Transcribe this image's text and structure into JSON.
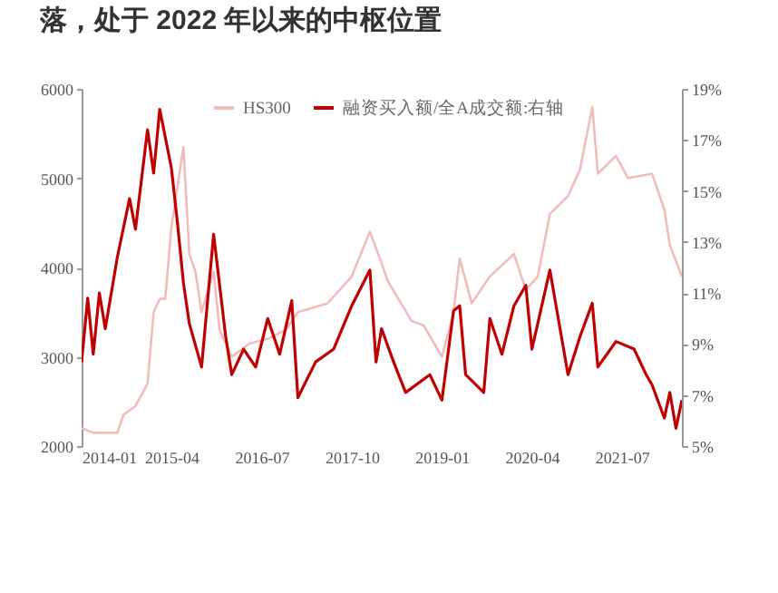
{
  "chart_data": {
    "type": "line",
    "title": "落，处于 2022 年以来的中枢位置",
    "series": [
      {
        "name": "HS300",
        "color": "#f0bcbc",
        "axis": "y",
        "x": [
          "2014-01",
          "2014-03",
          "2014-07",
          "2014-08",
          "2014-10",
          "2014-12",
          "2015-01",
          "2015-02",
          "2015-03",
          "2015-04",
          "2015-06",
          "2015-07",
          "2015-08",
          "2015-09",
          "2015-11",
          "2015-12",
          "2016-02",
          "2016-05",
          "2016-08",
          "2016-11",
          "2017-01",
          "2017-06",
          "2017-10",
          "2018-01",
          "2018-03",
          "2018-04",
          "2018-08",
          "2018-10",
          "2019-01",
          "2019-03",
          "2019-04",
          "2019-06",
          "2019-09",
          "2020-01",
          "2020-03",
          "2020-05",
          "2020-07",
          "2020-10",
          "2020-12",
          "2021-02",
          "2021-03",
          "2021-06",
          "2021-08",
          "2021-12",
          "2022-02",
          "2022-03",
          "2022-05"
        ],
        "values": [
          2200,
          2150,
          2150,
          2350,
          2450,
          2700,
          3500,
          3650,
          3650,
          4450,
          5350,
          4150,
          3950,
          3500,
          3950,
          3300,
          3000,
          3150,
          3200,
          3300,
          3500,
          3600,
          3900,
          4400,
          4050,
          3850,
          3400,
          3350,
          3000,
          3500,
          4100,
          3600,
          3900,
          4150,
          3750,
          3900,
          4600,
          4800,
          5100,
          5800,
          5050,
          5250,
          5000,
          5050,
          4650,
          4250,
          3900
        ]
      },
      {
        "name": "融资买入额/全A成交额:右轴",
        "color": "#c00000",
        "axis": "y2",
        "x": [
          "2014-01",
          "2014-02",
          "2014-03",
          "2014-04",
          "2014-05",
          "2014-07",
          "2014-09",
          "2014-10",
          "2014-12",
          "2015-01",
          "2015-02",
          "2015-04",
          "2015-05",
          "2015-06",
          "2015-07",
          "2015-09",
          "2015-11",
          "2016-01",
          "2016-02",
          "2016-04",
          "2016-06",
          "2016-08",
          "2016-10",
          "2016-12",
          "2017-01",
          "2017-04",
          "2017-07",
          "2017-10",
          "2018-01",
          "2018-02",
          "2018-03",
          "2018-05",
          "2018-07",
          "2018-11",
          "2019-01",
          "2019-03",
          "2019-04",
          "2019-05",
          "2019-08",
          "2019-09",
          "2019-11",
          "2020-01",
          "2020-03",
          "2020-04",
          "2020-07",
          "2020-10",
          "2020-12",
          "2021-02",
          "2021-03",
          "2021-06",
          "2021-09",
          "2021-11",
          "2021-12",
          "2022-02",
          "2022-03",
          "2022-04",
          "2022-05"
        ],
        "values": [
          8.3,
          10.8,
          8.6,
          11.0,
          9.6,
          12.4,
          14.7,
          13.5,
          17.4,
          15.7,
          18.2,
          15.9,
          13.8,
          11.4,
          9.8,
          8.1,
          13.3,
          9.3,
          7.8,
          8.8,
          8.1,
          10.0,
          8.6,
          10.7,
          6.9,
          8.3,
          8.8,
          10.5,
          11.9,
          8.3,
          9.6,
          8.3,
          7.1,
          7.8,
          6.8,
          10.3,
          10.5,
          7.8,
          7.1,
          10.0,
          8.6,
          10.5,
          11.3,
          8.8,
          11.9,
          7.8,
          9.3,
          10.6,
          8.1,
          9.1,
          8.8,
          7.8,
          7.4,
          6.1,
          7.1,
          5.7,
          6.8
        ]
      }
    ],
    "xlim": [
      "2014-01",
      "2022-05"
    ],
    "xticks": [
      "2014-01",
      "2015-04",
      "2016-07",
      "2017-10",
      "2019-01",
      "2020-04",
      "2021-07"
    ],
    "ylim": [
      2000,
      6000
    ],
    "yticks": [
      2000,
      3000,
      4000,
      5000,
      6000
    ],
    "y2lim": [
      5,
      19
    ],
    "y2ticks": [
      {
        "value": 5,
        "label": "5%"
      },
      {
        "value": 7,
        "label": "7%"
      },
      {
        "value": 9,
        "label": "9%"
      },
      {
        "value": 11,
        "label": "11%"
      },
      {
        "value": 13,
        "label": "13%"
      },
      {
        "value": 15,
        "label": "15%"
      },
      {
        "value": 17,
        "label": "17%"
      },
      {
        "value": 19,
        "label": "19%"
      }
    ],
    "legend": "top right"
  }
}
